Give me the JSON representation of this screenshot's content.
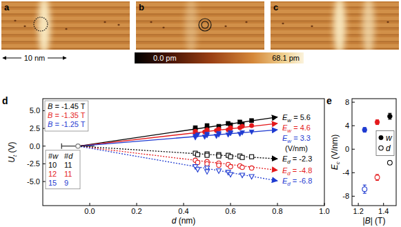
{
  "figure": {
    "images": [
      {
        "letter": "a"
      },
      {
        "letter": "b"
      },
      {
        "letter": "c"
      }
    ],
    "scale_bar": "10 nm",
    "colorbar": {
      "min_label": "0.0 pm",
      "max_label": "68.1 pm"
    }
  },
  "chart_data": [
    {
      "type": "scatter",
      "letter": "d",
      "x_label": {
        "var": "d",
        "unit": " (nm)"
      },
      "y_label": {
        "var": "U",
        "sub": "t",
        "unit": " (V)"
      },
      "xlim": [
        -0.2,
        1.0
      ],
      "ylim": [
        -8.4,
        6.7
      ],
      "xticks": [
        {
          "value": 0,
          "label": "0.0"
        },
        {
          "value": 0.2,
          "label": "0.2"
        },
        {
          "value": 0.4,
          "label": "0.4"
        },
        {
          "value": 0.6,
          "label": "0.6"
        },
        {
          "value": 0.8,
          "label": "0.8"
        },
        {
          "value": 1,
          "label": "1.0"
        }
      ],
      "yticks": [
        {
          "value": -5,
          "label": "-5.0"
        },
        {
          "value": -2.5,
          "label": "-2.5"
        },
        {
          "value": 0,
          "label": "0.0"
        },
        {
          "value": 2.5,
          "label": "2.5"
        },
        {
          "value": 5,
          "label": "5.0"
        }
      ],
      "origin": {
        "x": -0.05,
        "y": 0,
        "xerr": 0.07
      },
      "series": [
        {
          "color": "#000000",
          "marker": "square",
          "x": [
            0.45,
            0.45,
            0.5,
            0.5,
            0.55,
            0.59,
            0.6,
            0.64,
            0.65,
            0.69
          ],
          "values": [
            2.3,
            2.6,
            2.5,
            2.9,
            2.8,
            3.2,
            3.0,
            3.4,
            3.1,
            3.6
          ]
        },
        {
          "color": "#e41a1c",
          "marker": "circle",
          "x": [
            0.45,
            0.45,
            0.49,
            0.5,
            0.54,
            0.55,
            0.59,
            0.6,
            0.6,
            0.64,
            0.65,
            0.69
          ],
          "values": [
            1.8,
            2.1,
            2.0,
            2.3,
            2.2,
            2.4,
            2.3,
            2.6,
            2.5,
            2.6,
            2.8,
            2.9
          ]
        },
        {
          "color": "#1f3bd1",
          "marker": "triangle-down",
          "x": [
            0.45,
            0.45,
            0.46,
            0.49,
            0.5,
            0.5,
            0.54,
            0.55,
            0.55,
            0.59,
            0.6,
            0.6,
            0.64,
            0.65,
            0.69
          ],
          "values": [
            1.2,
            1.4,
            1.6,
            1.3,
            1.5,
            1.7,
            1.4,
            1.6,
            1.8,
            1.6,
            1.8,
            1.9,
            1.7,
            1.9,
            2.0
          ]
        },
        {
          "color": "#000000",
          "marker": "square-open",
          "x": [
            0.45,
            0.46,
            0.5,
            0.5,
            0.55,
            0.55,
            0.59,
            0.6,
            0.64,
            0.65,
            0.69
          ],
          "values": [
            -1.0,
            -1.2,
            -1.1,
            -1.3,
            -1.2,
            -1.4,
            -1.3,
            -1.5,
            -1.4,
            -1.6,
            -1.5
          ]
        },
        {
          "color": "#e41a1c",
          "marker": "circle-open",
          "x": [
            0.45,
            0.46,
            0.5,
            0.5,
            0.55,
            0.55,
            0.59,
            0.6,
            0.64,
            0.65,
            0.69
          ],
          "values": [
            -2.0,
            -2.3,
            -2.2,
            -2.5,
            -2.4,
            -2.7,
            -2.6,
            -2.9,
            -2.8,
            -3.0,
            -3.1
          ]
        },
        {
          "color": "#1f3bd1",
          "marker": "triangle-down-open",
          "x": [
            0.45,
            0.46,
            0.5,
            0.5,
            0.55,
            0.59,
            0.6,
            0.65,
            0.69
          ],
          "values": [
            -2.9,
            -3.3,
            -3.1,
            -3.6,
            -3.5,
            -3.7,
            -4.0,
            -4.1,
            -4.3
          ]
        }
      ],
      "fits": [
        {
          "color": "#000000",
          "line_style": "solid",
          "x": [
            -0.05,
            0.8
          ],
          "values": [
            0,
            4.1
          ],
          "label": {
            "var": "E",
            "sub": "w",
            "text": " = 5.6"
          }
        },
        {
          "color": "#e41a1c",
          "line_style": "solid",
          "x": [
            -0.05,
            0.8
          ],
          "values": [
            0,
            3.2
          ],
          "label": {
            "var": "E",
            "sub": "w",
            "text": " = 4.6"
          }
        },
        {
          "color": "#1f3bd1",
          "line_style": "solid",
          "x": [
            -0.05,
            0.8
          ],
          "values": [
            0,
            2.3
          ],
          "label": {
            "var": "E",
            "sub": "w",
            "text": " = 3.3"
          }
        },
        {
          "color": "#000000",
          "line_style": "dotted",
          "x": [
            -0.05,
            0.8
          ],
          "values": [
            0,
            -1.8
          ],
          "label": {
            "var": "E",
            "sub": "d",
            "text": " = -2.3"
          }
        },
        {
          "color": "#e41a1c",
          "line_style": "dotted",
          "x": [
            -0.05,
            0.8
          ],
          "values": [
            0,
            -3.4
          ],
          "label": {
            "var": "E",
            "sub": "d",
            "text": " = -4.8"
          }
        },
        {
          "color": "#1f3bd1",
          "line_style": "dotted",
          "x": [
            -0.05,
            0.8
          ],
          "values": [
            0,
            -4.9
          ],
          "label": {
            "var": "E",
            "sub": "d",
            "text": " = -6.8"
          }
        }
      ],
      "fit_unit": "(V/nm)",
      "legend": "upper left",
      "legend_entries": [
        {
          "var": "B",
          "text": " = -1.45 T",
          "color": "#000000"
        },
        {
          "var": "B",
          "text": " = -1.35 T",
          "color": "#e41a1c"
        },
        {
          "var": "B",
          "text": " = -1.25 T",
          "color": "#1f3bd1"
        }
      ],
      "count_table": {
        "header": [
          "#w",
          "#d"
        ],
        "rows": [
          [
            10,
            11
          ],
          [
            12,
            11
          ],
          [
            15,
            9
          ]
        ]
      }
    },
    {
      "type": "scatter",
      "letter": "e",
      "x_label": {
        "pre": "|",
        "var": "B",
        "unit": "| (T)"
      },
      "y_label": {
        "var": "E",
        "sub": "c",
        "unit": " (V/nm)"
      },
      "xlim": [
        1.15,
        1.5
      ],
      "ylim": [
        -9.6,
        8.6
      ],
      "xticks": [
        1.2,
        1.4
      ],
      "yticks": [
        -8,
        -4,
        0,
        4,
        8
      ],
      "legend": "right",
      "series": [
        {
          "name": "w",
          "marker": "circle",
          "colors": [
            "#1f3bd1",
            "#e41a1c",
            "#000000"
          ],
          "x": [
            1.25,
            1.35,
            1.45
          ],
          "values": [
            3.3,
            4.6,
            5.6
          ],
          "errors": [
            0.4,
            0.4,
            0.5
          ]
        },
        {
          "name": "d",
          "marker": "circle-open",
          "colors": [
            "#1f3bd1",
            "#e41a1c",
            "#000000"
          ],
          "x": [
            1.25,
            1.35,
            1.45
          ],
          "values": [
            -6.8,
            -4.8,
            -2.3
          ],
          "errors": [
            0.7,
            0.5,
            0.3
          ]
        }
      ]
    }
  ]
}
